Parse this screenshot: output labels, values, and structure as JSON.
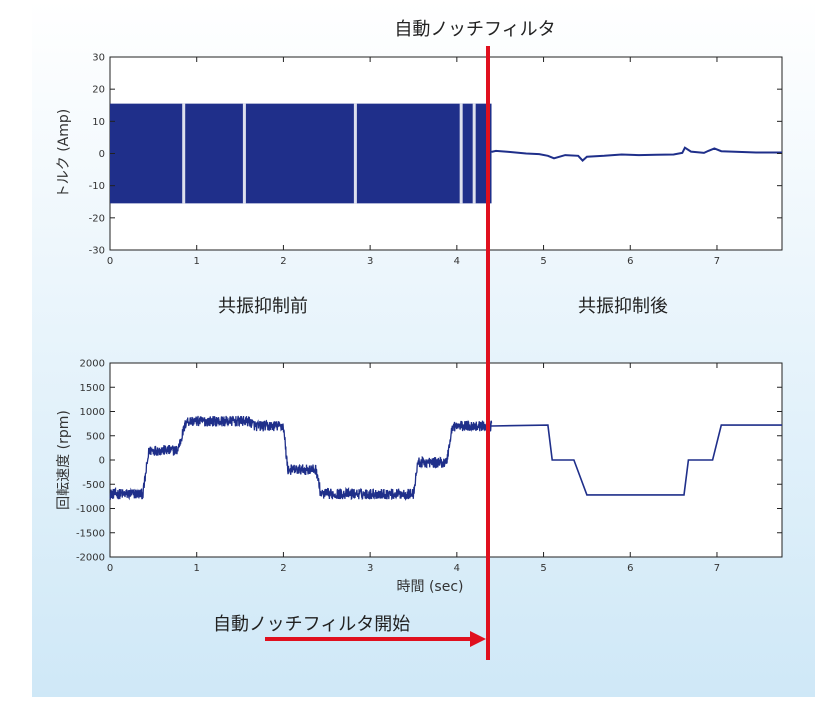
{
  "annotations": {
    "top_label": "自動ノッチフィルタ",
    "bottom_label": "自動ノッチフィルタ開始",
    "before_label": "共振抑制前",
    "after_label": "共振抑制後"
  },
  "colors": {
    "series": "#1f2f8a",
    "marker": "#e0101e",
    "background_top": "#ffffff",
    "background_bottom": "#cfe8f7"
  },
  "chart_data": [
    {
      "type": "line",
      "title": "",
      "xlabel": "",
      "ylabel": "トルク (Amp)",
      "xlim": [
        0,
        7.75
      ],
      "ylim": [
        -30,
        30
      ],
      "x_ticks": [
        0,
        1,
        2,
        3,
        4,
        5,
        6,
        7
      ],
      "y_ticks": [
        30,
        20,
        10,
        0,
        -10,
        -20,
        -30
      ],
      "grid": false,
      "marker_x": 4.4,
      "series": [
        {
          "name": "",
          "style": "band_then_line",
          "band": {
            "x_start": 0,
            "x_end": 4.4,
            "upper": 15.5,
            "lower": -15.5,
            "notches": [
              0.85,
              1.55,
              2.83,
              4.05,
              4.2
            ]
          },
          "x": [
            4.4,
            4.45,
            4.6,
            4.8,
            4.95,
            5.05,
            5.12,
            5.25,
            5.4,
            5.45,
            5.5,
            5.7,
            5.9,
            6.1,
            6.3,
            6.5,
            6.6,
            6.63,
            6.7,
            6.85,
            6.9,
            6.97,
            7.05,
            7.25,
            7.45,
            7.75
          ],
          "y": [
            0.5,
            0.8,
            0.5,
            0.0,
            -0.2,
            -0.7,
            -1.5,
            -0.5,
            -0.7,
            -2.2,
            -1.0,
            -0.7,
            -0.3,
            -0.5,
            -0.4,
            -0.3,
            0.2,
            1.8,
            0.6,
            0.2,
            0.8,
            1.6,
            0.7,
            0.5,
            0.3,
            0.3
          ]
        }
      ]
    },
    {
      "type": "line",
      "title": "",
      "xlabel": "時間 (sec)",
      "ylabel": "回転速度 (rpm)",
      "xlim": [
        0,
        7.75
      ],
      "ylim": [
        -2000,
        2000
      ],
      "x_ticks": [
        0,
        1,
        2,
        3,
        4,
        5,
        6,
        7
      ],
      "y_ticks": [
        2000,
        1500,
        1000,
        500,
        0,
        -500,
        -1000,
        -1500,
        -2000
      ],
      "grid": false,
      "marker_x": 4.4,
      "series": [
        {
          "name": "",
          "style": "noisy_then_line",
          "noise_until": 4.4,
          "noise_amplitude": 110,
          "x": [
            0,
            0.38,
            0.45,
            0.78,
            0.88,
            1.6,
            1.68,
            2.0,
            2.05,
            2.38,
            2.43,
            3.5,
            3.55,
            3.88,
            3.95,
            4.4,
            5.05,
            5.1,
            5.35,
            5.5,
            6.62,
            6.67,
            6.95,
            7.05,
            7.75
          ],
          "y": [
            -700,
            -700,
            200,
            200,
            800,
            800,
            700,
            700,
            -200,
            -200,
            -700,
            -700,
            -50,
            -50,
            700,
            700,
            720,
            0,
            0,
            -720,
            -720,
            0,
            0,
            720,
            720
          ]
        }
      ]
    }
  ]
}
